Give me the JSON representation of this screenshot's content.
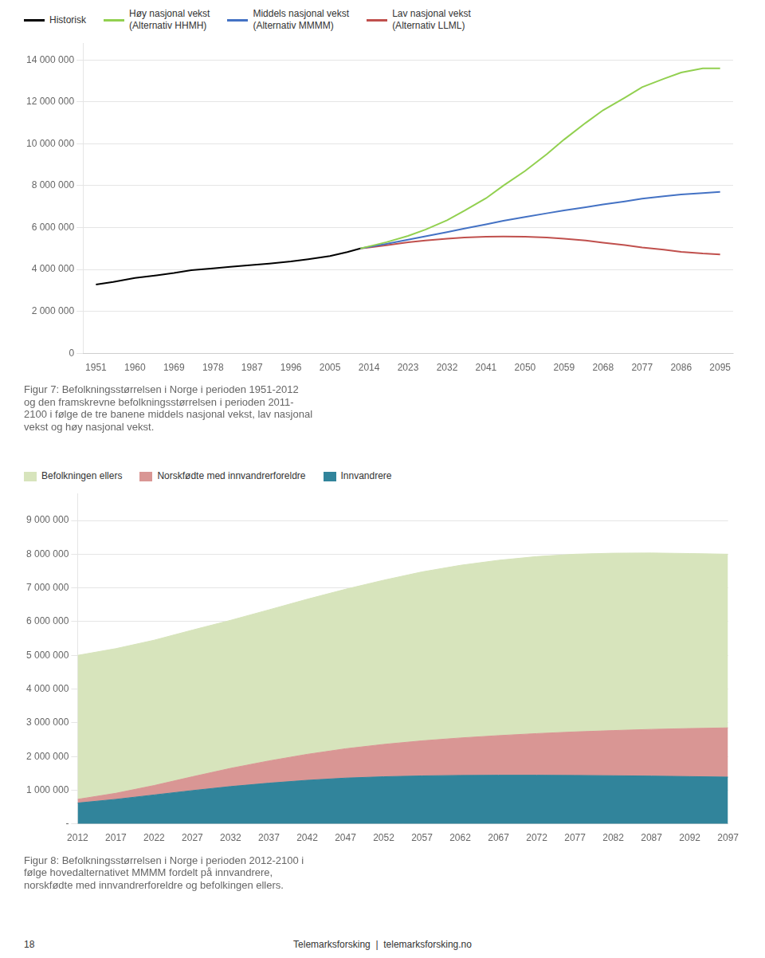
{
  "chart_data": [
    {
      "type": "line",
      "title": "Figur 7: Befolkningsstørrelsen i Norge i perioden 1951-2012\nog den framskrevne befolkningsstørrelsen i perioden 2011-\n2100 i følge de tre banene middels nasjonal vekst, lav nasjonal\nvekst og høy nasjonal vekst.",
      "series": [
        {
          "name": "Historisk",
          "color": "#000000",
          "x": [
            1951,
            1955,
            1960,
            1965,
            1969,
            1973,
            1978,
            1982,
            1987,
            1991,
            1996,
            2000,
            2005,
            2009,
            2012
          ],
          "values": [
            3280000,
            3400000,
            3590000,
            3720000,
            3830000,
            3960000,
            4050000,
            4130000,
            4210000,
            4280000,
            4380000,
            4490000,
            4640000,
            4830000,
            5000000
          ]
        },
        {
          "name": "Høy nasjonal vekst\n(Alternativ HHMH)",
          "color": "#92d050",
          "x": [
            2012,
            2014,
            2018,
            2023,
            2027,
            2032,
            2036,
            2041,
            2045,
            2050,
            2055,
            2059,
            2064,
            2068,
            2073,
            2077,
            2082,
            2086,
            2091,
            2095
          ],
          "values": [
            5000000,
            5100000,
            5300000,
            5600000,
            5900000,
            6350000,
            6800000,
            7400000,
            8000000,
            8700000,
            9500000,
            10200000,
            11000000,
            11600000,
            12200000,
            12700000,
            13100000,
            13400000,
            13600000,
            13600000
          ]
        },
        {
          "name": "Middels nasjonal vekst\n(Alternativ MMMM)",
          "color": "#4472c4",
          "x": [
            2012,
            2014,
            2018,
            2023,
            2027,
            2032,
            2036,
            2041,
            2045,
            2050,
            2055,
            2059,
            2064,
            2068,
            2073,
            2077,
            2082,
            2086,
            2091,
            2095
          ],
          "values": [
            5000000,
            5080000,
            5220000,
            5420000,
            5580000,
            5780000,
            5950000,
            6150000,
            6320000,
            6500000,
            6680000,
            6820000,
            6970000,
            7100000,
            7250000,
            7380000,
            7490000,
            7580000,
            7650000,
            7700000
          ]
        },
        {
          "name": "Lav nasjonal vekst\n(Alternativ LLML)",
          "color": "#c0504d",
          "x": [
            2012,
            2014,
            2018,
            2023,
            2027,
            2032,
            2036,
            2041,
            2045,
            2050,
            2055,
            2059,
            2064,
            2068,
            2073,
            2077,
            2082,
            2086,
            2091,
            2095
          ],
          "values": [
            5000000,
            5050000,
            5150000,
            5300000,
            5380000,
            5470000,
            5520000,
            5560000,
            5570000,
            5560000,
            5520000,
            5470000,
            5380000,
            5280000,
            5160000,
            5050000,
            4940000,
            4840000,
            4760000,
            4720000
          ]
        }
      ],
      "xlim": [
        1948,
        2098
      ],
      "xticks": [
        1951,
        1960,
        1969,
        1978,
        1987,
        1996,
        2005,
        2014,
        2023,
        2032,
        2041,
        2050,
        2059,
        2068,
        2077,
        2086,
        2095
      ],
      "ylim": [
        0,
        14800000
      ],
      "yticks": [
        0,
        {
          "value": 2000000,
          "label": "2 000 000"
        },
        {
          "value": 4000000,
          "label": "4 000 000"
        },
        {
          "value": 6000000,
          "label": "6 000 000"
        },
        {
          "value": 8000000,
          "label": "8 000 000"
        },
        {
          "value": 10000000,
          "label": "10 000 000"
        },
        {
          "value": 12000000,
          "label": "12 000 000"
        },
        {
          "value": 14000000,
          "label": "14 000 000"
        }
      ],
      "grid": "y",
      "legend": "top"
    },
    {
      "type": "area",
      "stacked": true,
      "title": "Figur 8: Befolkningsstørrelsen i Norge i perioden 2012-2100 i\nfølge hovedalternativet MMMM fordelt på innvandrere,\nnorskfødte med innvandrerforeldre og befolkingen ellers.",
      "x": [
        2012,
        2017,
        2022,
        2027,
        2032,
        2037,
        2042,
        2047,
        2052,
        2057,
        2062,
        2067,
        2072,
        2077,
        2082,
        2087,
        2092,
        2097
      ],
      "series": [
        {
          "name": "Innvandrere",
          "color": "#31849b",
          "values": [
            620000,
            730000,
            860000,
            990000,
            1110000,
            1210000,
            1295000,
            1360000,
            1400000,
            1425000,
            1440000,
            1445000,
            1445000,
            1440000,
            1430000,
            1420000,
            1405000,
            1390000
          ]
        },
        {
          "name": "Norskfødte med innvandrerforeldre",
          "color": "#d99694",
          "values": [
            110000,
            180000,
            280000,
            410000,
            540000,
            660000,
            770000,
            870000,
            960000,
            1040000,
            1110000,
            1175000,
            1235000,
            1290000,
            1340000,
            1385000,
            1425000,
            1460000
          ]
        },
        {
          "name": "Befolkningen ellers",
          "color": "#d7e4bc",
          "values": [
            4270000,
            4290000,
            4310000,
            4350000,
            4390000,
            4480000,
            4600000,
            4730000,
            4870000,
            5010000,
            5120000,
            5200000,
            5250000,
            5270000,
            5260000,
            5230000,
            5190000,
            5150000
          ]
        }
      ],
      "xlim": [
        2012,
        2097
      ],
      "xticks": [
        2012,
        2017,
        2022,
        2027,
        2032,
        2037,
        2042,
        2047,
        2052,
        2057,
        2062,
        2067,
        2072,
        2077,
        2082,
        2087,
        2092,
        2097
      ],
      "ylim": [
        0,
        9800000
      ],
      "yticks": [
        {
          "value": 0,
          "label": "-"
        },
        {
          "value": 1000000,
          "label": "1 000 000"
        },
        {
          "value": 2000000,
          "label": "2 000 000"
        },
        {
          "value": 3000000,
          "label": "3 000 000"
        },
        {
          "value": 4000000,
          "label": "4 000 000"
        },
        {
          "value": 5000000,
          "label": "5 000 000"
        },
        {
          "value": 6000000,
          "label": "6 000 000"
        },
        {
          "value": 7000000,
          "label": "7 000 000"
        },
        {
          "value": 8000000,
          "label": "8 000 000"
        },
        {
          "value": 9000000,
          "label": "9 000 000"
        }
      ],
      "grid": "y",
      "legend": "top"
    }
  ],
  "annotations": [
    "Telemarksforsking  |  telemarksforsking.no",
    "18"
  ]
}
